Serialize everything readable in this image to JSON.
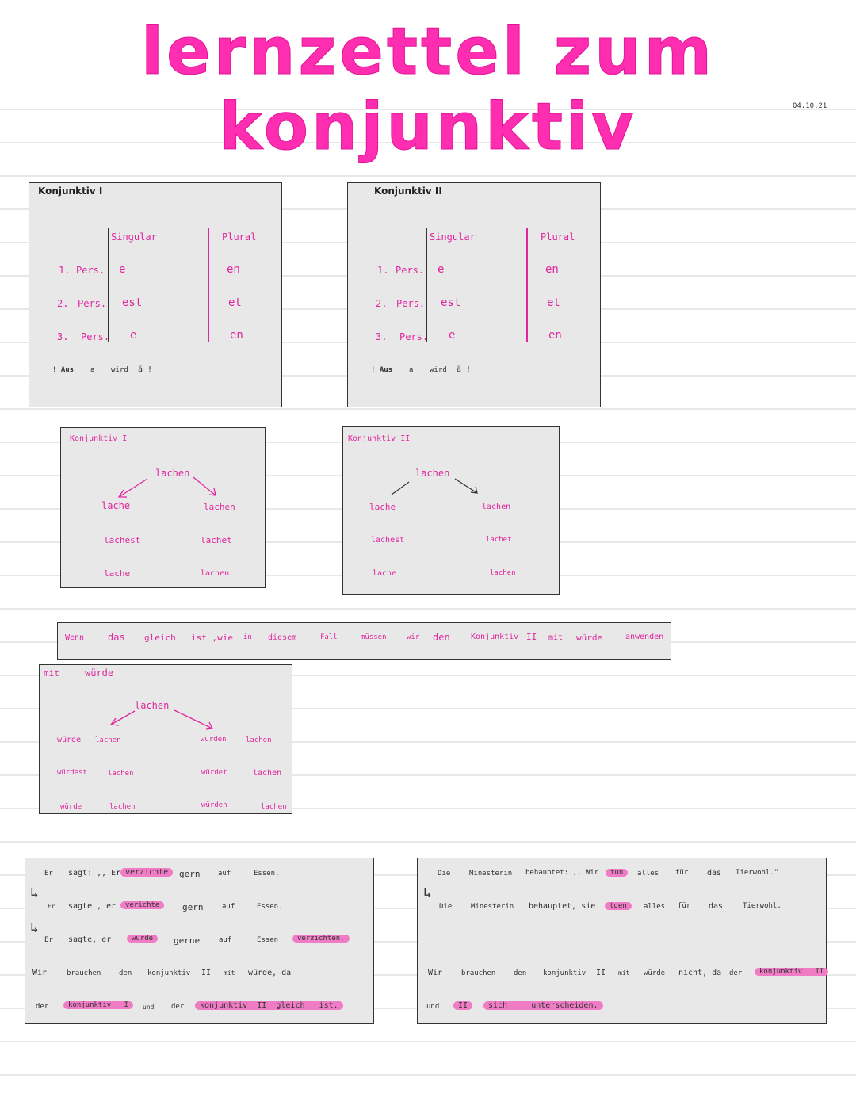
{
  "title": "lernzettel zum konjunktiv",
  "date": "04.10.21",
  "konj1_table": {
    "heading": "Konjunktiv I",
    "singular": "Singular",
    "plural": "Plural",
    "rows": [
      {
        "num": "1.",
        "pers": "Pers.",
        "sg": "e",
        "pl": "en"
      },
      {
        "num": "2.",
        "pers": "Pers.",
        "sg": "est",
        "pl": "et"
      },
      {
        "num": "3.",
        "pers": "Pers.",
        "sg": "e",
        "pl": "en"
      }
    ],
    "note": [
      "! Aus",
      "a",
      "wird",
      "ä !"
    ]
  },
  "konj2_table": {
    "heading": "Konjunktiv II",
    "singular": "Singular",
    "plural": "Plural",
    "rows": [
      {
        "num": "1.",
        "pers": "Pers.",
        "sg": "e",
        "pl": "en"
      },
      {
        "num": "2.",
        "pers": "Pers.",
        "sg": "est",
        "pl": "et"
      },
      {
        "num": "3.",
        "pers": "Pers.",
        "sg": "e",
        "pl": "en"
      }
    ],
    "note": [
      "! Aus",
      "a",
      "wird",
      "ä !"
    ]
  },
  "konj1_example": {
    "heading": "Konjunktiv I",
    "verb": "lachen",
    "singular": [
      "lache",
      "lachest",
      "lache"
    ],
    "plural": [
      "lachen",
      "lachet",
      "lachen"
    ]
  },
  "konj2_example": {
    "heading": "Konjunktiv II",
    "verb": "lachen",
    "singular": [
      "lache",
      "lachest",
      "lache"
    ],
    "plural": [
      "lachen",
      "lachet",
      "lachen"
    ]
  },
  "rule_sentence": [
    "Wenn",
    "das",
    "gleich",
    "ist ,wie",
    "in",
    "diesem",
    "Fall",
    "müssen",
    "wir",
    "den",
    "Konjunktiv",
    "II",
    "mit",
    "würde",
    "anwenden"
  ],
  "wuerde_example": {
    "label_mit": "mit",
    "label_wuerde": "würde",
    "verb": "lachen",
    "singular": [
      [
        "würde",
        "lachen"
      ],
      [
        "würdest",
        "lachen"
      ],
      [
        "würde",
        "lachen"
      ]
    ],
    "plural": [
      [
        "würden",
        "lachen"
      ],
      [
        "würdet",
        "lachen"
      ],
      [
        "würden",
        "lachen"
      ]
    ]
  },
  "example_left": {
    "line1": [
      "Er",
      "sagt: ,, Er",
      "verzichte",
      "gern",
      "auf",
      "Essen."
    ],
    "line2": [
      "Er",
      "sagte , er",
      "verichte",
      "gern",
      "auf",
      "Essen."
    ],
    "line3": [
      "Er",
      "sagte, er",
      "würde",
      "gerne",
      "auf",
      "Essen",
      "verzichten."
    ],
    "line4": [
      "Wir",
      "brauchen",
      "den",
      "konjunktiv",
      "II",
      "mit",
      "würde, da"
    ],
    "line5": [
      "der",
      "konjunktiv",
      "I",
      "und",
      "der",
      "konjunktiv",
      "II",
      "gleich",
      "ist."
    ]
  },
  "example_right": {
    "line1": [
      "Die",
      "Minesterin",
      "behauptet: ,, Wir",
      "tun",
      "alles",
      "für",
      "das",
      "Tierwohl.\""
    ],
    "line2": [
      "Die",
      "Minesterin",
      "behauptet, sie",
      "tuen",
      "alles",
      "für",
      "das",
      "Tierwohl."
    ],
    "line4": [
      "Wir",
      "brauchen",
      "den",
      "konjunktiv",
      "II",
      "mit",
      "würde",
      "nicht, da",
      "der",
      "konjunktiv",
      "II"
    ],
    "line5": [
      "und",
      "II",
      "sich",
      "unterscheiden."
    ]
  }
}
